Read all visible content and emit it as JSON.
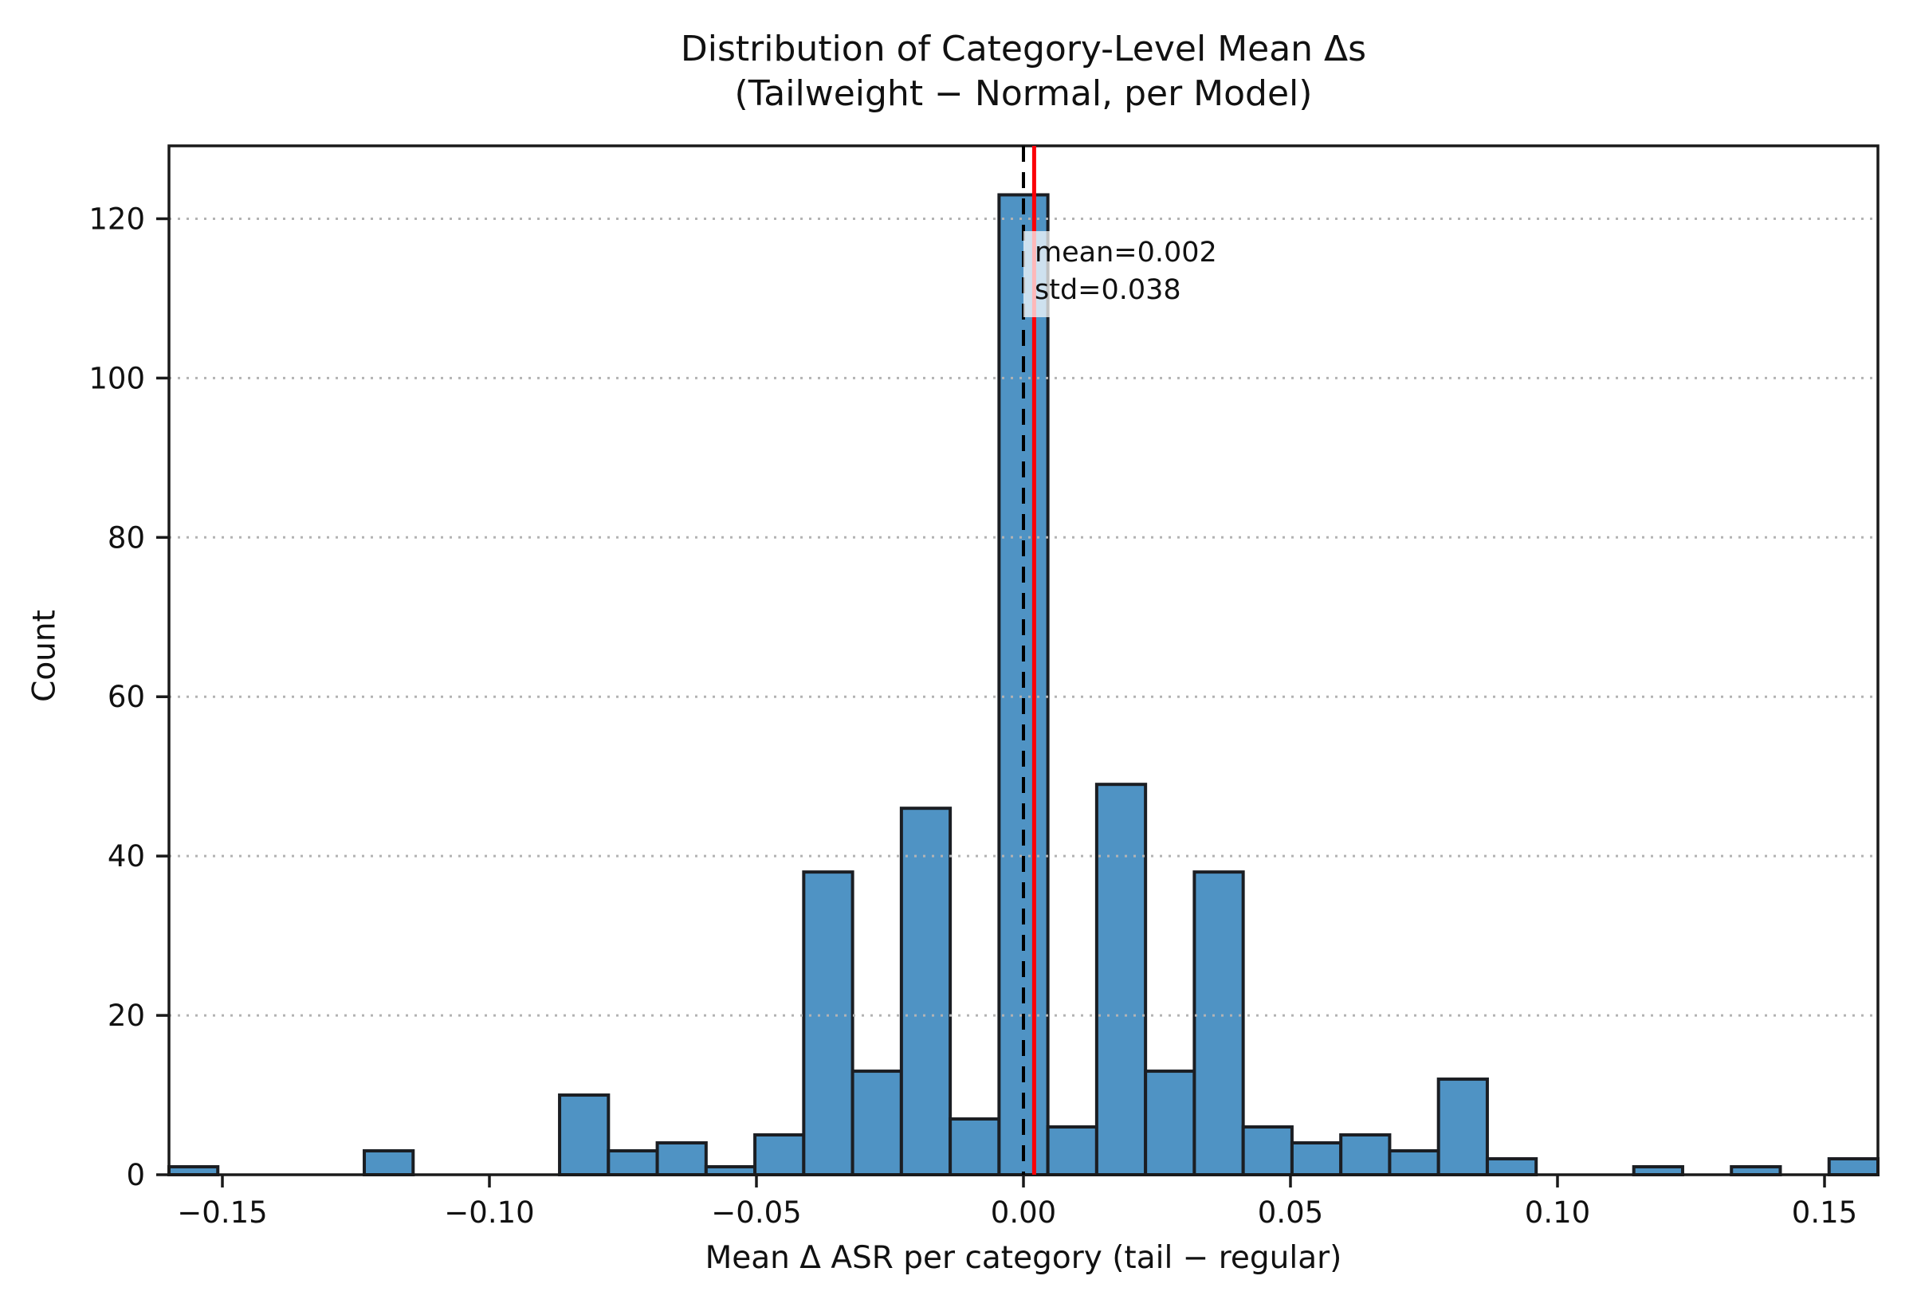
{
  "title": {
    "line1": "Distribution of Category-Level Mean Δs",
    "line2": "(Tailweight − Normal, per Model)"
  },
  "axes": {
    "xlabel": "Mean Δ ASR per category (tail − regular)",
    "ylabel": "Count",
    "x_tick_labels": [
      "−0.15",
      "−0.10",
      "−0.05",
      "0.00",
      "0.05",
      "0.10",
      "0.15"
    ],
    "x_tick_values": [
      -0.15,
      -0.1,
      -0.05,
      0.0,
      0.05,
      0.1,
      0.15
    ],
    "y_tick_labels": [
      "0",
      "20",
      "40",
      "60",
      "80",
      "100",
      "120"
    ],
    "y_tick_values": [
      0,
      20,
      40,
      60,
      80,
      100,
      120
    ],
    "xlim": [
      -0.16,
      0.16
    ],
    "ylim": [
      0,
      129.15
    ],
    "grid": "horizontal dotted"
  },
  "chart_data": {
    "type": "bar",
    "subtype": "histogram",
    "title": "Distribution of Category-Level Mean Δs (Tailweight − Normal, per Model)",
    "xlabel": "Mean Δ ASR per category (tail − regular)",
    "ylabel": "Count",
    "xlim": [
      -0.16,
      0.16
    ],
    "ylim": [
      0,
      129.15
    ],
    "bin_start": -0.16,
    "bin_width": 0.009142857,
    "counts": [
      1,
      0,
      0,
      0,
      3,
      0,
      0,
      0,
      10,
      3,
      4,
      1,
      5,
      38,
      13,
      46,
      7,
      123,
      6,
      49,
      13,
      38,
      6,
      4,
      5,
      3,
      12,
      2,
      0,
      0,
      1,
      0,
      1,
      0,
      2
    ],
    "reference_lines": [
      {
        "name": "zero-line",
        "x": 0.0,
        "style": "dashed",
        "color": "#000000"
      },
      {
        "name": "mean-line",
        "x": 0.002,
        "style": "solid",
        "color": "#fb0007"
      }
    ],
    "stats": {
      "mean": 0.002,
      "std": 0.038
    },
    "legend": "none"
  },
  "annotation": {
    "line1": "mean=0.002",
    "line2": "std=0.038"
  },
  "colors": {
    "bar_fill": "#4f93c4",
    "bar_edge": "#1b1e23",
    "grid": "#b3b3b3",
    "spine": "#1a1a1a",
    "tick": "#1a1a1a",
    "zero_line": "#000000",
    "mean_line": "#fb0007",
    "annotation_bg": "rgba(255,255,255,0.72)",
    "text": "#111111"
  }
}
